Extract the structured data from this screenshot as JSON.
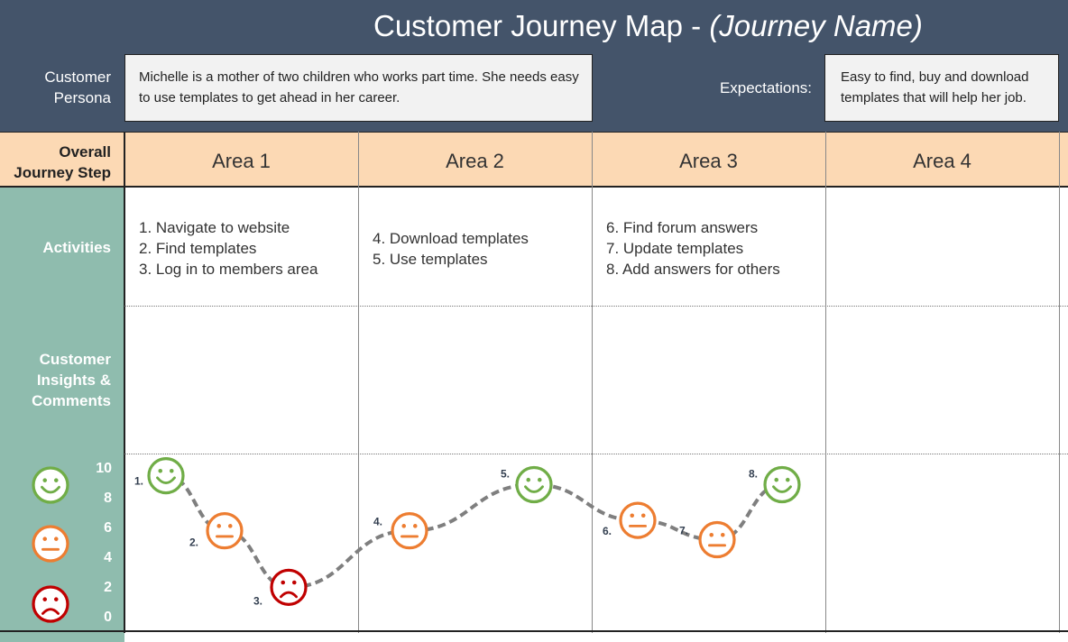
{
  "header": {
    "title": "Customer Journey Map - ",
    "title_name": "(Journey Name)",
    "persona_label": "Customer Persona",
    "persona_text": "Michelle is a mother of two children who works part time. She needs easy to use templates to get ahead in her career.",
    "expectations_label": "Expectations:",
    "expectations_text": "Easy to find, buy and download templates that will help her job."
  },
  "rows": {
    "step_label": "Overall Journey Step",
    "activities_label": "Activities",
    "insights_label": "Customer Insights & Comments"
  },
  "areas": [
    "Area 1",
    "Area 2",
    "Area 3",
    "Area 4"
  ],
  "activities": [
    [
      "1. Navigate to website",
      "2. Find templates",
      "3. Log in to members area"
    ],
    [
      "4. Download templates",
      "5. Use templates"
    ],
    [
      "6. Find forum answers",
      "7. Update templates",
      "8. Add answers for others"
    ],
    []
  ],
  "colors": {
    "happy": "#70ad47",
    "neutral": "#ed7d31",
    "sad": "#c00000",
    "line": "#7f7f7f",
    "header": "#44546a",
    "step_row": "#fcd9b4",
    "left_col": "#8fbcae"
  },
  "chart_data": {
    "type": "line",
    "y_ticks": [
      0,
      2,
      4,
      6,
      8,
      10
    ],
    "ylim": [
      0,
      10
    ],
    "legend_icons": [
      "happy-face-icon",
      "neutral-face-icon",
      "sad-face-icon"
    ],
    "points": [
      {
        "label": "1.",
        "area": 1,
        "y": 9.6,
        "mood": "happy"
      },
      {
        "label": "2.",
        "area": 1,
        "y": 5.9,
        "mood": "neutral"
      },
      {
        "label": "3.",
        "area": 1,
        "y": 2.1,
        "mood": "sad"
      },
      {
        "label": "4.",
        "area": 2,
        "y": 5.9,
        "mood": "neutral"
      },
      {
        "label": "5.",
        "area": 2,
        "y": 9.0,
        "mood": "happy"
      },
      {
        "label": "6.",
        "area": 3,
        "y": 6.6,
        "mood": "neutral"
      },
      {
        "label": "7.",
        "area": 3,
        "y": 5.3,
        "mood": "neutral"
      },
      {
        "label": "8.",
        "area": 3,
        "y": 9.0,
        "mood": "happy"
      }
    ]
  }
}
